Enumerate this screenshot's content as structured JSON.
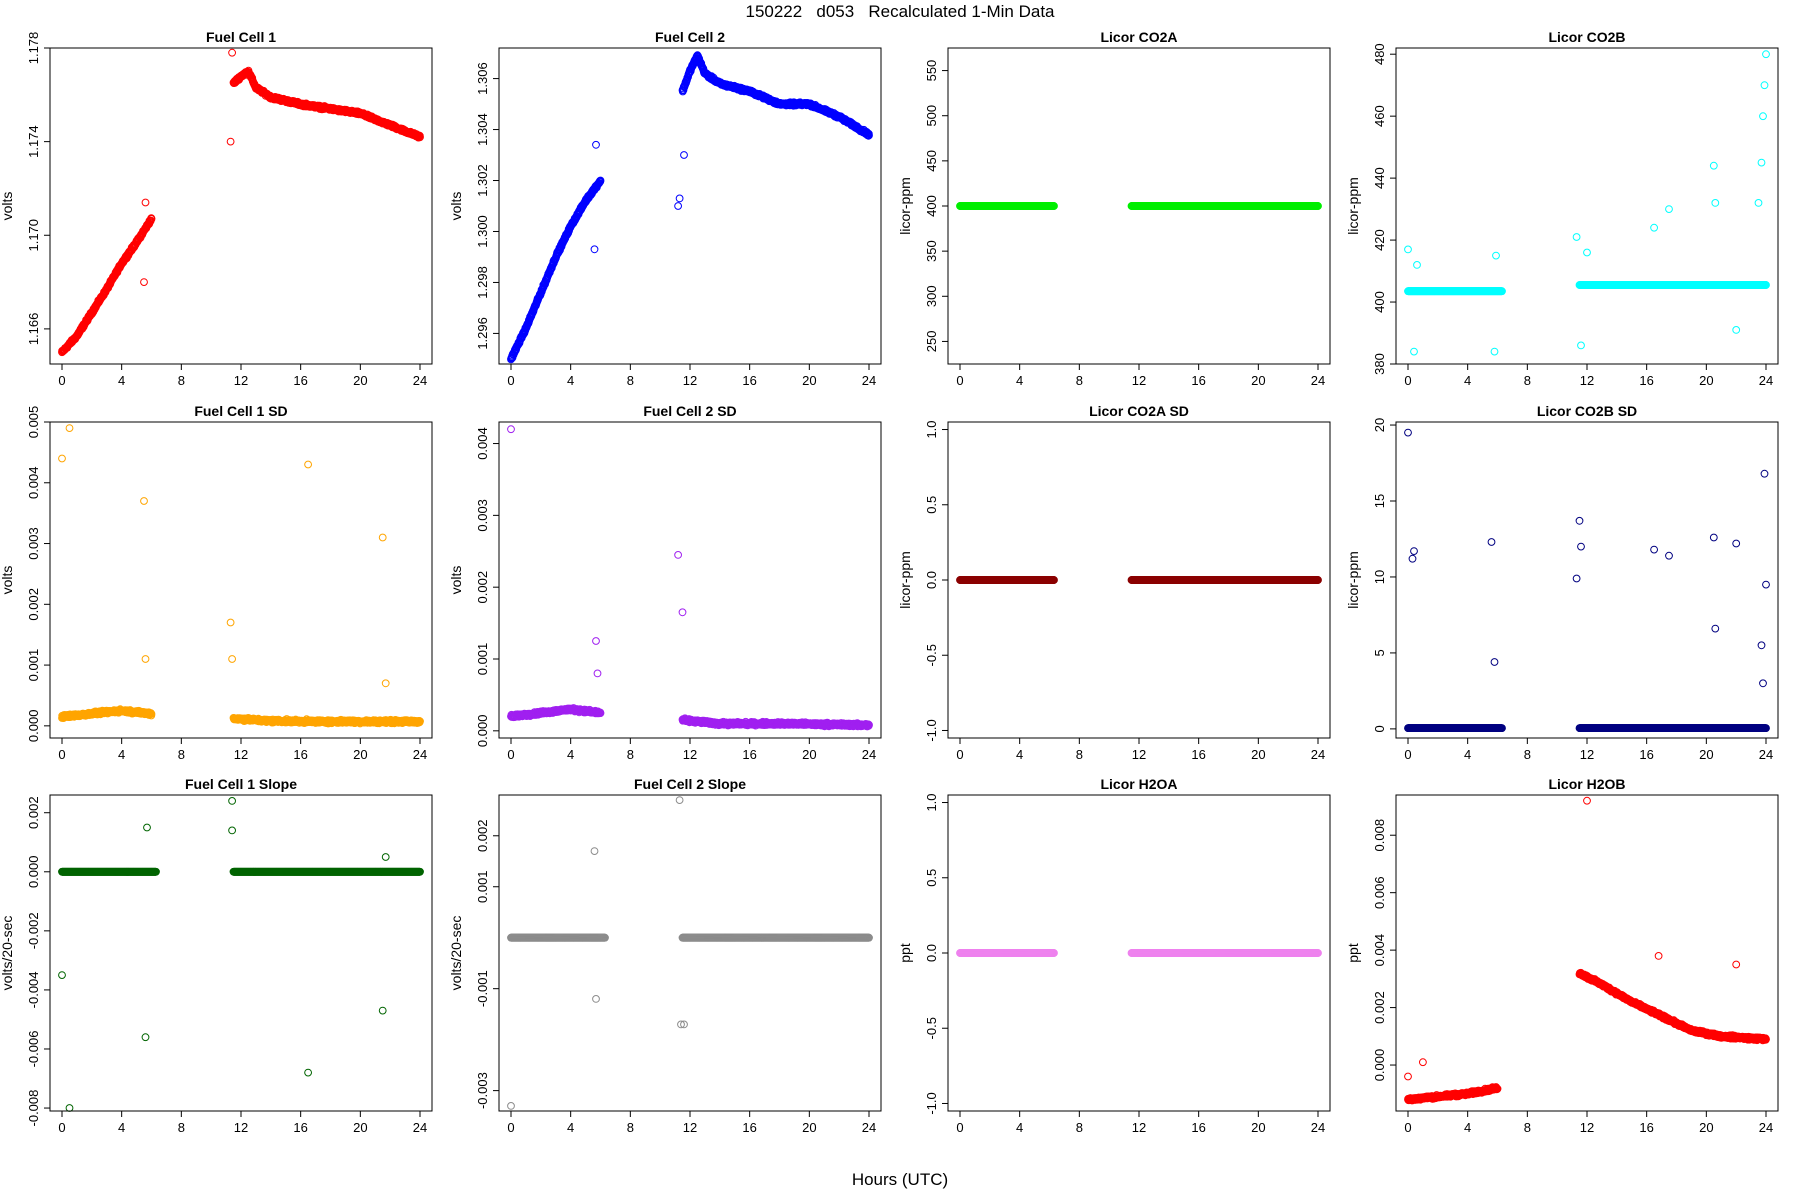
{
  "figure": {
    "title": "150222   d053   Recalculated 1-Min Data",
    "xlabel": "Hours (UTC)"
  },
  "chart_data": [
    {
      "type": "scatter",
      "title": "Fuel Cell 1",
      "ylabel": "volts",
      "color": "#ff0000",
      "xlim": [
        0,
        24
      ],
      "ylim": [
        1.1645,
        1.178
      ],
      "xticks": [
        "0",
        "4",
        "8",
        "12",
        "16",
        "20",
        "24"
      ],
      "xtick_values": [
        0,
        4,
        8,
        12,
        16,
        20,
        24
      ],
      "yticks": [
        "1.166",
        "1.170",
        "1.174",
        "1.178"
      ],
      "ytick_values": [
        1.166,
        1.17,
        1.174,
        1.178
      ],
      "series": [
        {
          "segments": [
            {
              "x": [
                0,
                1,
                2,
                3,
                4,
                5,
                6
              ],
              "y": [
                1.165,
                1.1657,
                1.1667,
                1.1677,
                1.1688,
                1.1697,
                1.1707
              ]
            },
            {
              "x": [
                11.5,
                12,
                12.5,
                13,
                14,
                16,
                18,
                20,
                22,
                24
              ],
              "y": [
                1.1765,
                1.1768,
                1.177,
                1.1763,
                1.1759,
                1.1756,
                1.1754,
                1.1752,
                1.1747,
                1.1742
              ]
            }
          ]
        }
      ],
      "outliers": {
        "x": [
          5.5,
          5.6,
          11.3,
          11.4
        ],
        "y": [
          1.168,
          1.1714,
          1.174,
          1.1778
        ]
      }
    },
    {
      "type": "scatter",
      "title": "Fuel Cell 2",
      "ylabel": "volts",
      "color": "#0000ff",
      "xlim": [
        0,
        24
      ],
      "ylim": [
        1.2948,
        1.3072
      ],
      "xticks": [
        "0",
        "4",
        "8",
        "12",
        "16",
        "20",
        "24"
      ],
      "xtick_values": [
        0,
        4,
        8,
        12,
        16,
        20,
        24
      ],
      "yticks": [
        "1.296",
        "1.298",
        "1.300",
        "1.302",
        "1.304",
        "1.306"
      ],
      "ytick_values": [
        1.296,
        1.298,
        1.3,
        1.302,
        1.304,
        1.306
      ],
      "series": [
        {
          "segments": [
            {
              "x": [
                0,
                1,
                2,
                3,
                4,
                5,
                6
              ],
              "y": [
                1.295,
                1.2962,
                1.2976,
                1.299,
                1.3002,
                1.3012,
                1.302
              ]
            },
            {
              "x": [
                11.5,
                12,
                12.5,
                13,
                14,
                16,
                18,
                20,
                22,
                24
              ],
              "y": [
                1.3055,
                1.3063,
                1.3069,
                1.3062,
                1.3058,
                1.3055,
                1.305,
                1.305,
                1.3045,
                1.3038
              ]
            }
          ]
        }
      ],
      "outliers": {
        "x": [
          5.6,
          5.7,
          11.2,
          11.3,
          11.6
        ],
        "y": [
          1.2993,
          1.3034,
          1.301,
          1.3013,
          1.303
        ]
      }
    },
    {
      "type": "scatter",
      "title": "Licor CO2A",
      "ylabel": "licor-ppm",
      "color": "#00ee00",
      "xlim": [
        0,
        24
      ],
      "ylim": [
        225,
        575
      ],
      "xticks": [
        "0",
        "4",
        "8",
        "12",
        "16",
        "20",
        "24"
      ],
      "xtick_values": [
        0,
        4,
        8,
        12,
        16,
        20,
        24
      ],
      "yticks": [
        "250",
        "300",
        "350",
        "400",
        "450",
        "500",
        "550"
      ],
      "ytick_values": [
        250,
        300,
        350,
        400,
        450,
        500,
        550
      ],
      "series": [
        {
          "segments": [
            {
              "x": [
                0,
                6.3
              ],
              "y": [
                400,
                400
              ]
            },
            {
              "x": [
                11.5,
                24
              ],
              "y": [
                400,
                400
              ]
            }
          ]
        }
      ]
    },
    {
      "type": "scatter",
      "title": "Licor CO2B",
      "ylabel": "licor-ppm",
      "color": "#00ffff",
      "xlim": [
        0,
        24
      ],
      "ylim": [
        380,
        482
      ],
      "xticks": [
        "0",
        "4",
        "8",
        "12",
        "16",
        "20",
        "24"
      ],
      "xtick_values": [
        0,
        4,
        8,
        12,
        16,
        20,
        24
      ],
      "yticks": [
        "380",
        "400",
        "420",
        "440",
        "460",
        "480"
      ],
      "ytick_values": [
        380,
        400,
        420,
        440,
        460,
        480
      ],
      "series": [
        {
          "segments": [
            {
              "x": [
                0,
                6.3
              ],
              "y": [
                403.5,
                403.5
              ]
            },
            {
              "x": [
                11.5,
                24
              ],
              "y": [
                405.5,
                405.5
              ]
            }
          ]
        }
      ],
      "outliers": {
        "x": [
          0,
          0.4,
          0.6,
          5.8,
          5.9,
          11.3,
          11.6,
          12.0,
          16.5,
          17.5,
          20.5,
          20.6,
          22.0,
          23.5,
          23.7,
          23.8,
          23.9,
          24.0
        ],
        "y": [
          417,
          384,
          412,
          384,
          415,
          421,
          386,
          416,
          424,
          430,
          444,
          432,
          391,
          432,
          445,
          460,
          470,
          480
        ]
      }
    },
    {
      "type": "scatter",
      "title": "Fuel Cell 1 SD",
      "ylabel": "volts",
      "color": "#ffa500",
      "xlim": [
        0,
        24
      ],
      "ylim": [
        -0.0002,
        0.005
      ],
      "xticks": [
        "0",
        "4",
        "8",
        "12",
        "16",
        "20",
        "24"
      ],
      "xtick_values": [
        0,
        4,
        8,
        12,
        16,
        20,
        24
      ],
      "yticks": [
        "0.000",
        "0.001",
        "0.002",
        "0.003",
        "0.004",
        "0.005"
      ],
      "ytick_values": [
        0,
        0.001,
        0.002,
        0.003,
        0.004,
        0.005
      ],
      "series": [
        {
          "segments": [
            {
              "x": [
                0,
                2,
                4,
                6
              ],
              "y": [
                0.00015,
                0.0002,
                0.00025,
                0.0002
              ]
            },
            {
              "x": [
                11.5,
                14,
                18,
                24
              ],
              "y": [
                0.00012,
                8e-05,
                7e-05,
                7e-05
              ]
            }
          ]
        }
      ],
      "outliers": {
        "x": [
          0,
          0.5,
          5.5,
          5.6,
          11.3,
          11.4,
          16.5,
          21.5,
          21.7
        ],
        "y": [
          0.0044,
          0.0049,
          0.0037,
          0.0011,
          0.0017,
          0.0011,
          0.0043,
          0.0031,
          0.0007
        ]
      }
    },
    {
      "type": "scatter",
      "title": "Fuel Cell 2 SD",
      "ylabel": "volts",
      "color": "#a020f0",
      "xlim": [
        0,
        24
      ],
      "ylim": [
        -0.0001,
        0.0043
      ],
      "xticks": [
        "0",
        "4",
        "8",
        "12",
        "16",
        "20",
        "24"
      ],
      "xtick_values": [
        0,
        4,
        8,
        12,
        16,
        20,
        24
      ],
      "yticks": [
        "0.000",
        "0.001",
        "0.002",
        "0.003",
        "0.004"
      ],
      "ytick_values": [
        0,
        0.001,
        0.002,
        0.003,
        0.004
      ],
      "series": [
        {
          "segments": [
            {
              "x": [
                0,
                2,
                4,
                6
              ],
              "y": [
                0.0002,
                0.00025,
                0.0003,
                0.00025
              ]
            },
            {
              "x": [
                11.5,
                14,
                18,
                24
              ],
              "y": [
                0.00015,
                0.0001,
                0.0001,
                8e-05
              ]
            }
          ]
        }
      ],
      "outliers": {
        "x": [
          0,
          5.7,
          5.8,
          11.2,
          11.5
        ],
        "y": [
          0.0042,
          0.00125,
          0.0008,
          0.00245,
          0.00165
        ]
      }
    },
    {
      "type": "scatter",
      "title": "Licor CO2A SD",
      "ylabel": "licor-ppm",
      "color": "#8b0000",
      "xlim": [
        0,
        24
      ],
      "ylim": [
        -1.05,
        1.05
      ],
      "xticks": [
        "0",
        "4",
        "8",
        "12",
        "16",
        "20",
        "24"
      ],
      "xtick_values": [
        0,
        4,
        8,
        12,
        16,
        20,
        24
      ],
      "yticks": [
        "-1.0",
        "-0.5",
        "0.0",
        "0.5",
        "1.0"
      ],
      "ytick_values": [
        -1,
        -0.5,
        0,
        0.5,
        1
      ],
      "series": [
        {
          "segments": [
            {
              "x": [
                0,
                6.3
              ],
              "y": [
                0,
                0
              ]
            },
            {
              "x": [
                11.5,
                24
              ],
              "y": [
                0,
                0
              ]
            }
          ]
        }
      ]
    },
    {
      "type": "scatter",
      "title": "Licor CO2B SD",
      "ylabel": "licor-ppm",
      "color": "#000080",
      "xlim": [
        0,
        24
      ],
      "ylim": [
        -0.6,
        20.2
      ],
      "xticks": [
        "0",
        "4",
        "8",
        "12",
        "16",
        "20",
        "24"
      ],
      "xtick_values": [
        0,
        4,
        8,
        12,
        16,
        20,
        24
      ],
      "yticks": [
        "0",
        "5",
        "10",
        "15",
        "20"
      ],
      "ytick_values": [
        0,
        5,
        10,
        15,
        20
      ],
      "series": [
        {
          "segments": [
            {
              "x": [
                0,
                6.3
              ],
              "y": [
                0.05,
                0.05
              ]
            },
            {
              "x": [
                11.5,
                24
              ],
              "y": [
                0.05,
                0.05
              ]
            }
          ]
        }
      ],
      "outliers": {
        "x": [
          0,
          0.3,
          0.4,
          5.6,
          5.8,
          11.3,
          11.5,
          11.6,
          16.5,
          17.5,
          20.5,
          20.6,
          22.0,
          23.9,
          24.0,
          23.7,
          23.8
        ],
        "y": [
          19.5,
          11.2,
          11.7,
          12.3,
          4.4,
          9.9,
          13.7,
          12.0,
          11.8,
          11.4,
          12.6,
          6.6,
          12.2,
          16.8,
          9.5,
          5.5,
          3.0
        ]
      }
    },
    {
      "type": "scatter",
      "title": "Fuel Cell 1 Slope",
      "ylabel": "volts/20-sec",
      "color": "#006400",
      "xlim": [
        0,
        24
      ],
      "ylim": [
        -0.0081,
        0.0026
      ],
      "xticks": [
        "0",
        "4",
        "8",
        "12",
        "16",
        "20",
        "24"
      ],
      "xtick_values": [
        0,
        4,
        8,
        12,
        16,
        20,
        24
      ],
      "yticks": [
        "-0.008",
        "-0.006",
        "-0.004",
        "-0.002",
        "0.000",
        "0.002"
      ],
      "ytick_values": [
        -0.008,
        -0.006,
        -0.004,
        -0.002,
        0,
        0.002
      ],
      "series": [
        {
          "segments": [
            {
              "x": [
                0,
                6.3
              ],
              "y": [
                0,
                0
              ]
            },
            {
              "x": [
                11.5,
                24
              ],
              "y": [
                0,
                0
              ]
            }
          ]
        }
      ],
      "outliers": {
        "x": [
          0,
          0.5,
          5.6,
          5.7,
          11.4,
          11.4,
          16.5,
          21.5,
          21.7
        ],
        "y": [
          -0.0035,
          -0.008,
          -0.0056,
          0.0015,
          0.0024,
          0.0014,
          -0.0068,
          -0.0047,
          0.0005
        ]
      }
    },
    {
      "type": "scatter",
      "title": "Fuel Cell 2 Slope",
      "ylabel": "volts/20-sec",
      "color": "#8c8c8c",
      "xlim": [
        0,
        24
      ],
      "ylim": [
        -0.0034,
        0.0028
      ],
      "xticks": [
        "0",
        "4",
        "8",
        "12",
        "16",
        "20",
        "24"
      ],
      "xtick_values": [
        0,
        4,
        8,
        12,
        16,
        20,
        24
      ],
      "yticks": [
        "-0.003",
        "-0.001",
        "0.001",
        "0.002"
      ],
      "ytick_values": [
        -0.003,
        -0.001,
        0.001,
        0.002
      ],
      "series": [
        {
          "segments": [
            {
              "x": [
                0,
                6.3
              ],
              "y": [
                0,
                0
              ]
            },
            {
              "x": [
                11.5,
                24
              ],
              "y": [
                0,
                0
              ]
            }
          ]
        }
      ],
      "outliers": {
        "x": [
          0,
          5.6,
          5.7,
          11.3,
          11.6,
          11.4
        ],
        "y": [
          -0.0033,
          0.0017,
          -0.0012,
          0.0027,
          -0.0017,
          -0.0017
        ]
      }
    },
    {
      "type": "scatter",
      "title": "Licor H2OA",
      "ylabel": "ppt",
      "color": "#ee82ee",
      "xlim": [
        0,
        24
      ],
      "ylim": [
        -1.05,
        1.05
      ],
      "xticks": [
        "0",
        "4",
        "8",
        "12",
        "16",
        "20",
        "24"
      ],
      "xtick_values": [
        0,
        4,
        8,
        12,
        16,
        20,
        24
      ],
      "yticks": [
        "-1.0",
        "-0.5",
        "0.0",
        "0.5",
        "1.0"
      ],
      "ytick_values": [
        -1,
        -0.5,
        0,
        0.5,
        1
      ],
      "series": [
        {
          "segments": [
            {
              "x": [
                0,
                6.3
              ],
              "y": [
                0,
                0
              ]
            },
            {
              "x": [
                11.5,
                24
              ],
              "y": [
                0,
                0
              ]
            }
          ]
        }
      ]
    },
    {
      "type": "scatter",
      "title": "Licor H2OB",
      "ylabel": "ppt",
      "color": "#ff0000",
      "xlim": [
        0,
        24
      ],
      "ylim": [
        -0.0016,
        0.0094
      ],
      "xticks": [
        "0",
        "4",
        "8",
        "12",
        "16",
        "20",
        "24"
      ],
      "xtick_values": [
        0,
        4,
        8,
        12,
        16,
        20,
        24
      ],
      "yticks": [
        "0.000",
        "0.002",
        "0.004",
        "0.006",
        "0.008"
      ],
      "ytick_values": [
        0,
        0.002,
        0.004,
        0.006,
        0.008
      ],
      "series": [
        {
          "segments": [
            {
              "x": [
                0,
                2,
                4,
                6
              ],
              "y": [
                -0.0012,
                -0.0011,
                -0.001,
                -0.0008
              ]
            },
            {
              "x": [
                11.5,
                13,
                15,
                17,
                19,
                21,
                24
              ],
              "y": [
                0.0032,
                0.0028,
                0.0022,
                0.0017,
                0.0012,
                0.001,
                0.0009
              ]
            }
          ]
        }
      ],
      "outliers": {
        "x": [
          0,
          1.0,
          12.0,
          16.8,
          22.0
        ],
        "y": [
          -0.0004,
          0.0001,
          0.0092,
          0.0038,
          0.0035
        ]
      }
    }
  ]
}
